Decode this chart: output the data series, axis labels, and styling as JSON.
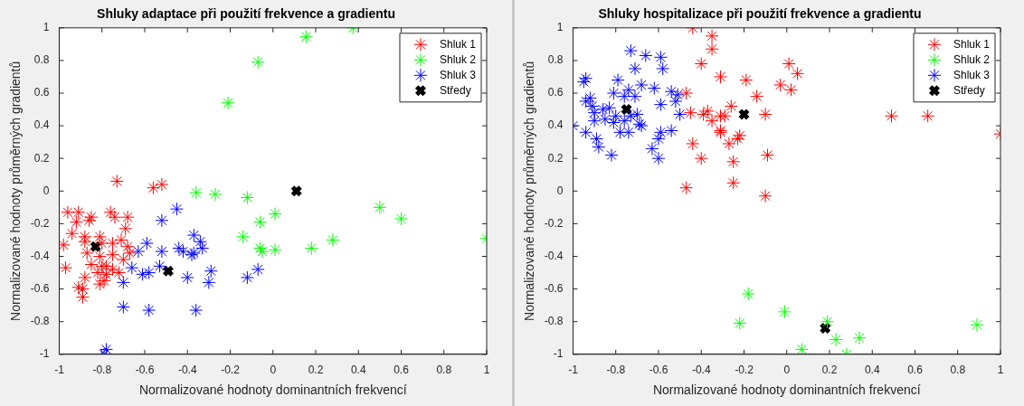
{
  "chart_data": [
    {
      "type": "scatter",
      "title": "Shluky adaptace při použití frekvence a gradientu",
      "xlabel": "Normalizované hodnoty dominantních frekvencí",
      "ylabel": "Normalizované hodnoty průměrných gradientů",
      "xlim": [
        -1,
        1
      ],
      "ylim": [
        -1,
        1
      ],
      "xticks": [
        -1,
        -0.8,
        -0.6,
        -0.4,
        -0.2,
        0,
        0.2,
        0.4,
        0.6,
        0.8,
        1
      ],
      "yticks": [
        -1,
        -0.8,
        -0.6,
        -0.4,
        -0.2,
        0,
        0.2,
        0.4,
        0.6,
        0.8,
        1
      ],
      "grid": false,
      "legend": "top right",
      "marker": "cross",
      "series": [
        {
          "name": "Shluk 1",
          "color": "#ff0000",
          "x": [
            -0.73,
            -0.56,
            -0.52,
            -0.96,
            -0.91,
            -0.85,
            -0.86,
            -0.92,
            -0.76,
            -0.74,
            -0.68,
            -0.69,
            -0.94,
            -0.98,
            -0.97,
            -0.88,
            -0.81,
            -0.88,
            -0.8,
            -0.75,
            -0.71,
            -0.68,
            -0.67,
            -0.87,
            -0.81,
            -0.75,
            -0.7,
            -0.85,
            -0.8,
            -0.78,
            -0.75,
            -0.82,
            -0.78,
            -0.72,
            -0.88,
            -0.81,
            -0.79,
            -0.91,
            -0.89,
            -0.89
          ],
          "values": [
            0.06,
            0.02,
            0.04,
            -0.13,
            -0.13,
            -0.16,
            -0.18,
            -0.19,
            -0.13,
            -0.16,
            -0.16,
            -0.23,
            -0.26,
            -0.33,
            -0.47,
            -0.28,
            -0.28,
            -0.31,
            -0.32,
            -0.32,
            -0.3,
            -0.34,
            -0.38,
            -0.38,
            -0.4,
            -0.39,
            -0.42,
            -0.45,
            -0.46,
            -0.46,
            -0.48,
            -0.5,
            -0.51,
            -0.5,
            -0.53,
            -0.57,
            -0.55,
            -0.59,
            -0.6,
            -0.65
          ]
        },
        {
          "name": "Shluk 2",
          "color": "#00ff00",
          "x": [
            0.375,
            0.155,
            -0.07,
            -0.21,
            -0.36,
            -0.27,
            -0.12,
            0.01,
            -0.06,
            -0.14,
            -0.06,
            -0.05,
            0.01,
            0.18,
            0.28,
            0.5,
            0.6,
            1
          ],
          "values": [
            1,
            0.945,
            0.79,
            0.54,
            -0.01,
            -0.02,
            -0.04,
            -0.14,
            -0.19,
            -0.28,
            -0.35,
            -0.37,
            -0.36,
            -0.35,
            -0.3,
            -0.1,
            -0.17,
            -0.29
          ]
        },
        {
          "name": "Shluk 3",
          "color": "#0000ff",
          "x": [
            -0.45,
            -0.52,
            -0.59,
            -0.63,
            -0.52,
            -0.66,
            -0.53,
            -0.61,
            -0.58,
            -0.7,
            -0.7,
            -0.58,
            -0.78,
            -0.79,
            -0.44,
            -0.37,
            -0.34,
            -0.37,
            -0.42,
            -0.4,
            -0.29,
            -0.3,
            -0.36,
            -0.12,
            -0.07,
            -0.38,
            -0.33
          ],
          "values": [
            -0.11,
            -0.18,
            -0.32,
            -0.37,
            -0.37,
            -0.47,
            -0.46,
            -0.51,
            -0.5,
            -0.56,
            -0.71,
            -0.73,
            -0.97,
            -1,
            -0.35,
            -0.27,
            -0.31,
            -0.38,
            -0.37,
            -0.53,
            -0.49,
            -0.56,
            -0.73,
            -0.53,
            -0.48,
            -0.39,
            -0.35
          ]
        },
        {
          "name": "Středy",
          "color": "#000000",
          "marker": "cross",
          "x": [
            -0.83,
            -0.49,
            0.11
          ],
          "values": [
            -0.34,
            -0.49,
            0.0
          ]
        }
      ]
    },
    {
      "type": "scatter",
      "title": "Shluky hospitalizace při použití frekvence a gradientu",
      "xlabel": "Normalizované hodnoty dominantních frekvencí",
      "ylabel": "Normalizované hodnoty průměrných gradientů",
      "xlim": [
        -1,
        1
      ],
      "ylim": [
        -1,
        1
      ],
      "xticks": [
        -1,
        -0.8,
        -0.6,
        -0.4,
        -0.2,
        0,
        0.2,
        0.4,
        0.6,
        0.8,
        1
      ],
      "yticks": [
        -1,
        -0.8,
        -0.6,
        -0.4,
        -0.2,
        0,
        0.2,
        0.4,
        0.6,
        0.8,
        1
      ],
      "grid": false,
      "legend": "top right",
      "marker": "cross",
      "series": [
        {
          "name": "Shluk 1",
          "color": "#ff0000",
          "x": [
            -0.44,
            -0.35,
            -0.35,
            -0.4,
            -0.31,
            -0.19,
            0.01,
            0.05,
            -0.03,
            0.02,
            -0.14,
            -0.47,
            -0.45,
            -0.37,
            -0.31,
            -0.26,
            -0.29,
            -0.39,
            -0.35,
            -0.31,
            -0.31,
            -0.22,
            -0.23,
            -0.27,
            -0.1,
            -0.09,
            -0.25,
            -0.44,
            -0.4,
            -0.47,
            -0.25,
            -0.1,
            0.49,
            0.66,
            1
          ],
          "values": [
            1,
            0.95,
            0.87,
            0.78,
            0.7,
            0.68,
            0.78,
            0.72,
            0.65,
            0.62,
            0.58,
            0.6,
            0.48,
            0.49,
            0.46,
            0.52,
            0.46,
            0.47,
            0.43,
            0.37,
            0.36,
            0.34,
            0.32,
            0.29,
            0.47,
            0.22,
            0.18,
            0.29,
            0.2,
            0.02,
            0.05,
            -0.03,
            0.46,
            0.46,
            0.35
          ]
        },
        {
          "name": "Shluk 2",
          "color": "#00ff00",
          "x": [
            -0.18,
            -0.01,
            -0.22,
            0.19,
            0.23,
            0.34,
            0.07,
            0.28,
            0.89
          ],
          "values": [
            -0.63,
            -0.74,
            -0.81,
            -0.8,
            -0.91,
            -0.9,
            -0.97,
            -1,
            -0.82
          ]
        },
        {
          "name": "Shluk 3",
          "color": "#0000ff",
          "x": [
            -1,
            -0.94,
            -0.89,
            -0.88,
            -0.82,
            -0.95,
            -0.94,
            -0.94,
            -0.92,
            -0.91,
            -0.9,
            -0.9,
            -0.86,
            -0.83,
            -0.81,
            -0.79,
            -0.76,
            -0.74,
            -0.71,
            -0.68,
            -0.73,
            -0.66,
            -0.59,
            -0.71,
            -0.58,
            -0.62,
            -0.54,
            -0.51,
            -0.52,
            -0.59,
            -0.5,
            -0.54,
            -0.59,
            -0.6,
            -0.63,
            -0.6,
            -0.78,
            -0.74,
            -0.69,
            -0.68,
            -0.81,
            -0.85,
            -0.76,
            -0.73,
            -0.7,
            -0.8
          ],
          "values": [
            0.4,
            0.36,
            0.32,
            0.27,
            0.22,
            0.67,
            0.69,
            0.55,
            0.57,
            0.52,
            0.43,
            0.48,
            0.5,
            0.51,
            0.6,
            0.68,
            0.58,
            0.62,
            0.58,
            0.65,
            0.86,
            0.83,
            0.82,
            0.75,
            0.75,
            0.63,
            0.61,
            0.59,
            0.55,
            0.53,
            0.47,
            0.37,
            0.36,
            0.32,
            0.26,
            0.2,
            0.36,
            0.36,
            0.41,
            0.4,
            0.42,
            0.44,
            0.43,
            0.46,
            0.47,
            0.46
          ]
        },
        {
          "name": "Středy",
          "color": "#000000",
          "marker": "cross",
          "x": [
            -0.2,
            -0.75,
            0.18
          ],
          "values": [
            0.47,
            0.5,
            -0.84
          ]
        }
      ]
    }
  ]
}
